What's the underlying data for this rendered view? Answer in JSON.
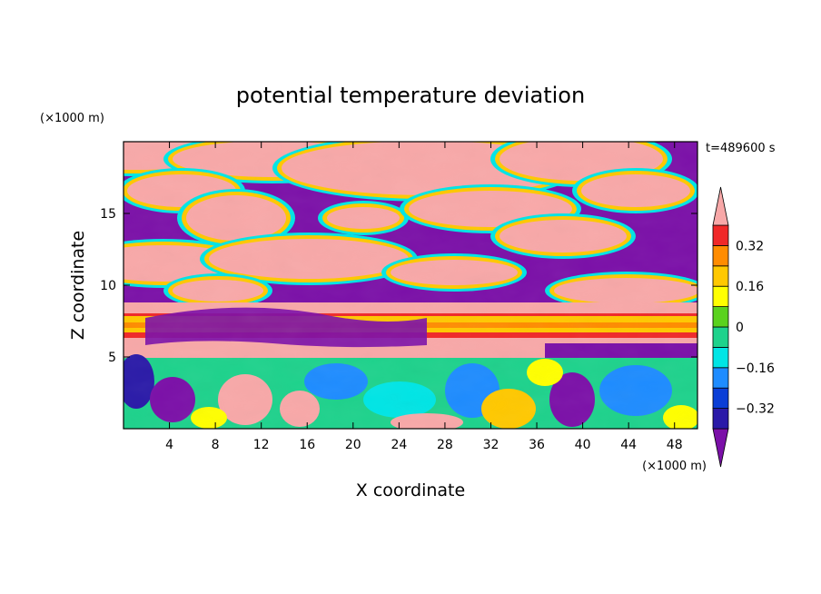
{
  "chart_data": {
    "type": "heatmap",
    "title": "potential temperature deviation",
    "xlabel": "X coordinate",
    "ylabel": "Z coordinate",
    "x_unit": "(×1000 m)",
    "y_unit": "(×1000 m)",
    "time_label": "t=489600 s",
    "xlim": [
      0,
      50
    ],
    "ylim": [
      0,
      20
    ],
    "x_ticks": [
      4,
      8,
      12,
      16,
      20,
      24,
      28,
      32,
      36,
      40,
      44,
      48
    ],
    "y_ticks": [
      5,
      10,
      15
    ],
    "colorbar": {
      "levels": [
        -0.4,
        -0.32,
        -0.24,
        -0.16,
        -0.08,
        0,
        0.08,
        0.16,
        0.24,
        0.32,
        0.4
      ],
      "labels": [
        "0.32",
        "0.16",
        "0",
        "−0.16",
        "−0.32"
      ],
      "label_values": [
        0.32,
        0.16,
        0,
        -0.16,
        -0.32
      ],
      "colors": [
        "#7b10a8",
        "#2a1aa8",
        "#0a3ed6",
        "#1e8cff",
        "#00e5e5",
        "#1ed28c",
        "#5ad21e",
        "#ffff00",
        "#ffc800",
        "#ff8c00",
        "#f02828",
        "#f8a8a8"
      ],
      "extend": "both"
    }
  }
}
